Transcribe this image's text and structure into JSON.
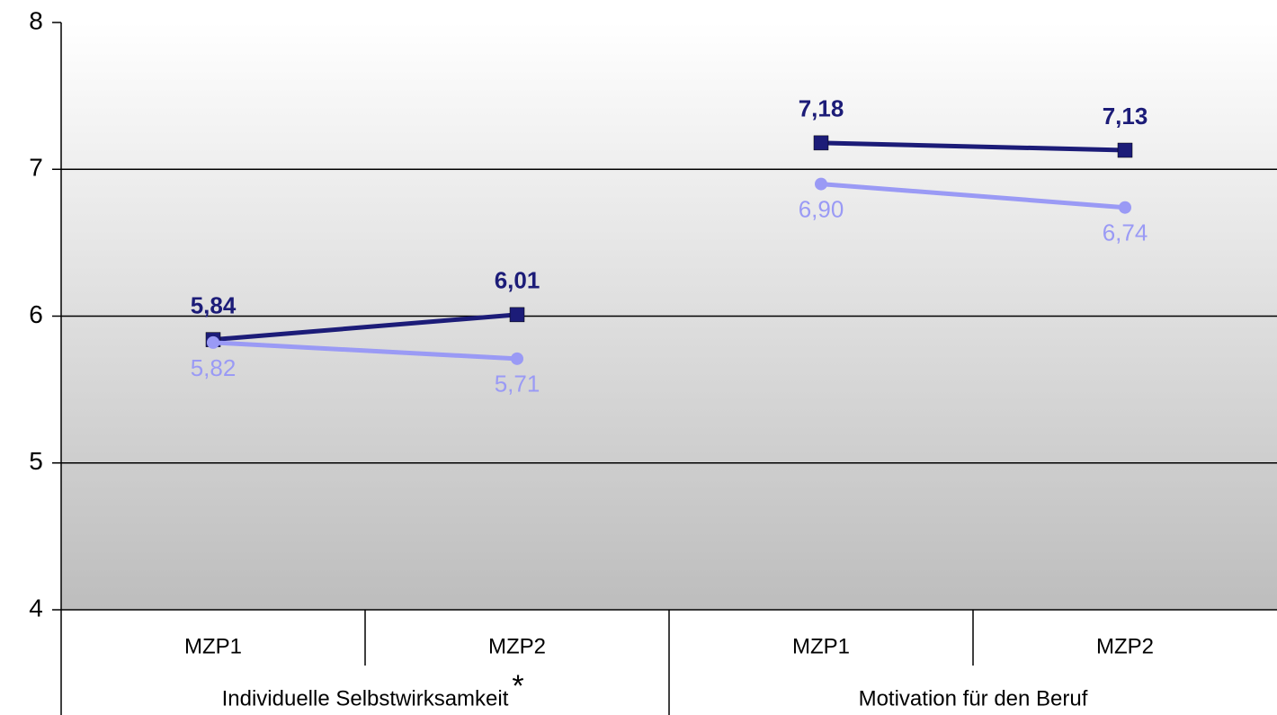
{
  "chart_data": {
    "type": "line",
    "categories": [
      "MZP1",
      "MZP2",
      "MZP1",
      "MZP2"
    ],
    "groups": [
      "Individuelle Selbstwirksamkeit",
      "Motivation für den Beruf"
    ],
    "annotation": "*",
    "series": [
      {
        "color": "#1c1c78",
        "marker": "square",
        "values": [
          5.84,
          6.01,
          7.18,
          7.13
        ],
        "value_labels": [
          "5,84",
          "6,01",
          "7,18",
          "7,13"
        ]
      },
      {
        "color": "#9a9af5",
        "marker": "circle",
        "values": [
          5.82,
          5.71,
          6.9,
          6.74
        ],
        "value_labels": [
          "5,82",
          "5,71",
          "6,90",
          "6,74"
        ]
      }
    ],
    "ylim": [
      4,
      8
    ],
    "yticks": [
      4,
      5,
      6,
      7,
      8
    ],
    "grid": true
  }
}
